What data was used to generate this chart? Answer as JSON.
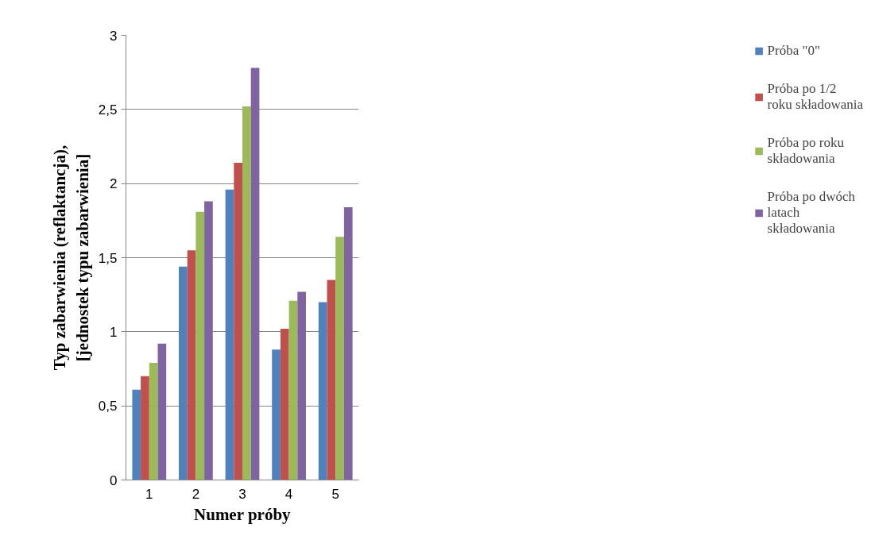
{
  "chart_data": {
    "type": "bar",
    "xlabel": "Numer próby",
    "ylabel": "Typ zabarwienia (reflaktancja), [jednostek typu zabarwienia]",
    "categories": [
      "1",
      "2",
      "3",
      "4",
      "5"
    ],
    "series": [
      {
        "name": "Próba \"0\"",
        "color": "#4f81bd",
        "values": [
          0.61,
          1.44,
          1.96,
          0.88,
          1.2
        ]
      },
      {
        "name": "Próba po 1/2 roku składowania",
        "color": "#c0504d",
        "values": [
          0.7,
          1.55,
          2.14,
          1.02,
          1.35
        ]
      },
      {
        "name": "Próba po roku składowania",
        "color": "#9bbb59",
        "values": [
          0.79,
          1.81,
          2.52,
          1.21,
          1.64
        ]
      },
      {
        "name": "Próba po dwóch latach składowania",
        "color": "#8064a2",
        "values": [
          0.92,
          1.88,
          2.78,
          1.27,
          1.84
        ]
      }
    ],
    "ylim": [
      0,
      3
    ],
    "yticks": [
      0,
      {
        "value": 0.5,
        "label": "0,5"
      },
      1,
      {
        "value": 1.5,
        "label": "1,5"
      },
      2,
      {
        "value": 2.5,
        "label": "2,5"
      },
      3
    ],
    "grid": "y",
    "legend": "right"
  }
}
